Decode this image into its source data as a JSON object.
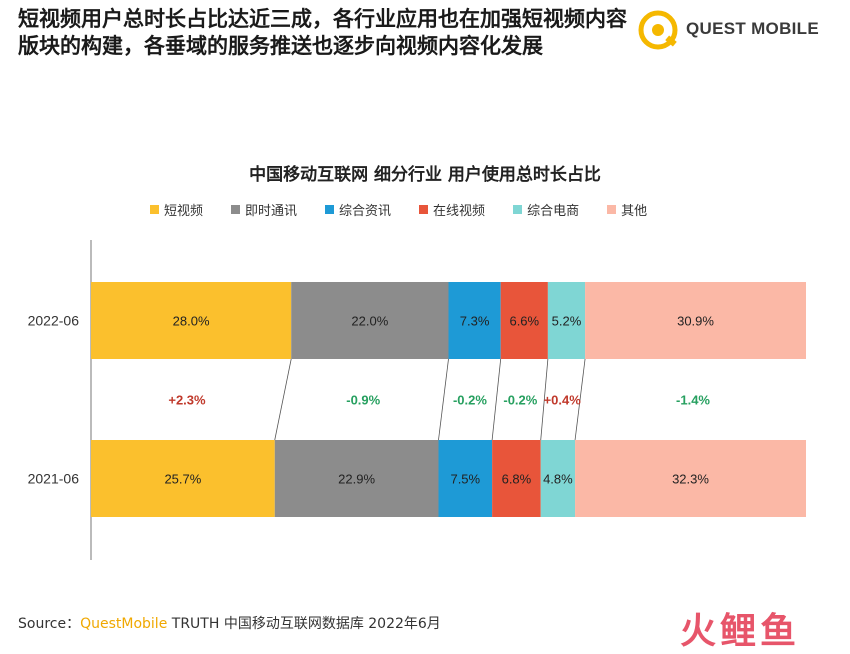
{
  "header": {
    "headline": "短视频用户总时长占比达近三成，各行业应用也在加强短视频内容版块的构建，各垂域的服务推送也逐步向视频内容化发展",
    "brand": "QUEST MOBILE"
  },
  "chart_data": {
    "type": "bar",
    "orientation": "horizontal",
    "stacked": true,
    "normalized_percent": true,
    "title": "中国移动互联网 细分行业 用户使用总时长占比",
    "categories": [
      "2022-06",
      "2021-06"
    ],
    "series": [
      {
        "name": "短视频",
        "color": "#fbc02d",
        "values": [
          28.0,
          25.7
        ],
        "labels": [
          "28.0%",
          "25.7%"
        ]
      },
      {
        "name": "即时通讯",
        "color": "#8c8c8c",
        "values": [
          22.0,
          22.9
        ],
        "labels": [
          "22.0%",
          "22.9%"
        ]
      },
      {
        "name": "综合资讯",
        "color": "#1e9ad6",
        "values": [
          7.3,
          7.5
        ],
        "labels": [
          "7.3%",
          "7.5%"
        ]
      },
      {
        "name": "在线视频",
        "color": "#e8553a",
        "values": [
          6.6,
          6.8
        ],
        "labels": [
          "6.6%",
          "6.8%"
        ]
      },
      {
        "name": "综合电商",
        "color": "#7fd6d4",
        "values": [
          5.2,
          4.8
        ],
        "labels": [
          "5.2%",
          "4.8%"
        ]
      },
      {
        "name": "其他",
        "color": "#fbb8a6",
        "values": [
          30.9,
          32.3
        ],
        "labels": [
          "30.9%",
          "32.3%"
        ]
      }
    ],
    "changes": [
      {
        "label": "+2.3%",
        "color": "#c0392b"
      },
      {
        "label": "-0.9%",
        "color": "#27a060"
      },
      {
        "label": "-0.2%",
        "color": "#27a060"
      },
      {
        "label": "-0.2%",
        "color": "#27a060"
      },
      {
        "label": "+0.4%",
        "color": "#c0392b"
      },
      {
        "label": "-1.4%",
        "color": "#27a060"
      }
    ],
    "legend_position": "top"
  },
  "footer": {
    "source_prefix": "Source：",
    "source_brand": "QuestMobile",
    "source_rest": " TRUTH 中国移动互联网数据库 2022年6月",
    "watermark": "火鲤鱼"
  }
}
